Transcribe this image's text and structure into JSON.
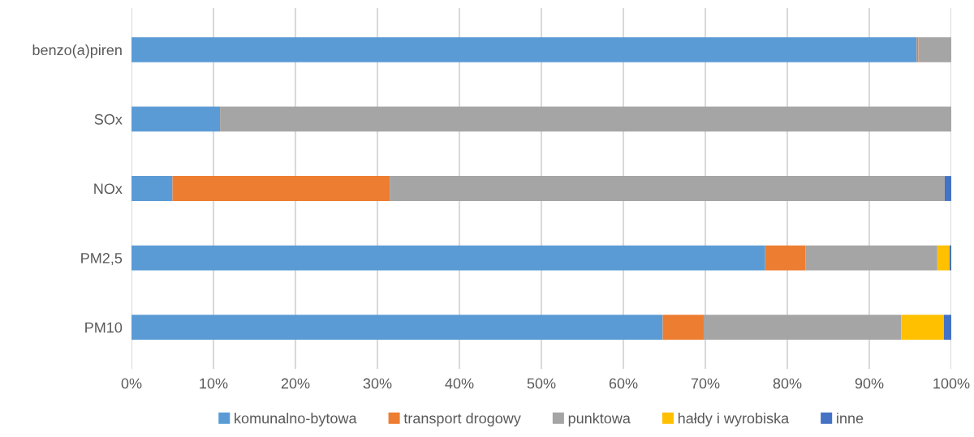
{
  "chart_data": {
    "type": "bar",
    "orientation": "horizontal",
    "stacked": true,
    "categories": [
      "benzo(a)piren",
      "SOx",
      "NOx",
      "PM2,5",
      "PM10"
    ],
    "series": [
      {
        "name": "komunalno-bytowa",
        "color": "#5b9bd5",
        "values": [
          95.8,
          10.8,
          5.0,
          77.3,
          64.8
        ]
      },
      {
        "name": "transport drogowy",
        "color": "#ed7d31",
        "values": [
          0.2,
          0,
          26.5,
          4.9,
          5.0
        ]
      },
      {
        "name": "punktowa",
        "color": "#a5a5a5",
        "values": [
          4.0,
          89.2,
          67.7,
          16.1,
          24.1
        ]
      },
      {
        "name": "hałdy i wyrobiska",
        "color": "#ffc000",
        "values": [
          0,
          0,
          0,
          1.5,
          5.2
        ]
      },
      {
        "name": "inne",
        "color": "#4472c4",
        "values": [
          0,
          0,
          0.8,
          0.2,
          0.9
        ]
      }
    ],
    "xlim": [
      0,
      100
    ],
    "xticks": [
      {
        "value": 0,
        "label": "0%"
      },
      {
        "value": 10,
        "label": "10%"
      },
      {
        "value": 20,
        "label": "20%"
      },
      {
        "value": 30,
        "label": "30%"
      },
      {
        "value": 40,
        "label": "40%"
      },
      {
        "value": 50,
        "label": "50%"
      },
      {
        "value": 60,
        "label": "60%"
      },
      {
        "value": 70,
        "label": "70%"
      },
      {
        "value": 80,
        "label": "80%"
      },
      {
        "value": 90,
        "label": "90%"
      },
      {
        "value": 100,
        "label": "100%"
      }
    ],
    "grid": "x",
    "legend": "bottom"
  }
}
